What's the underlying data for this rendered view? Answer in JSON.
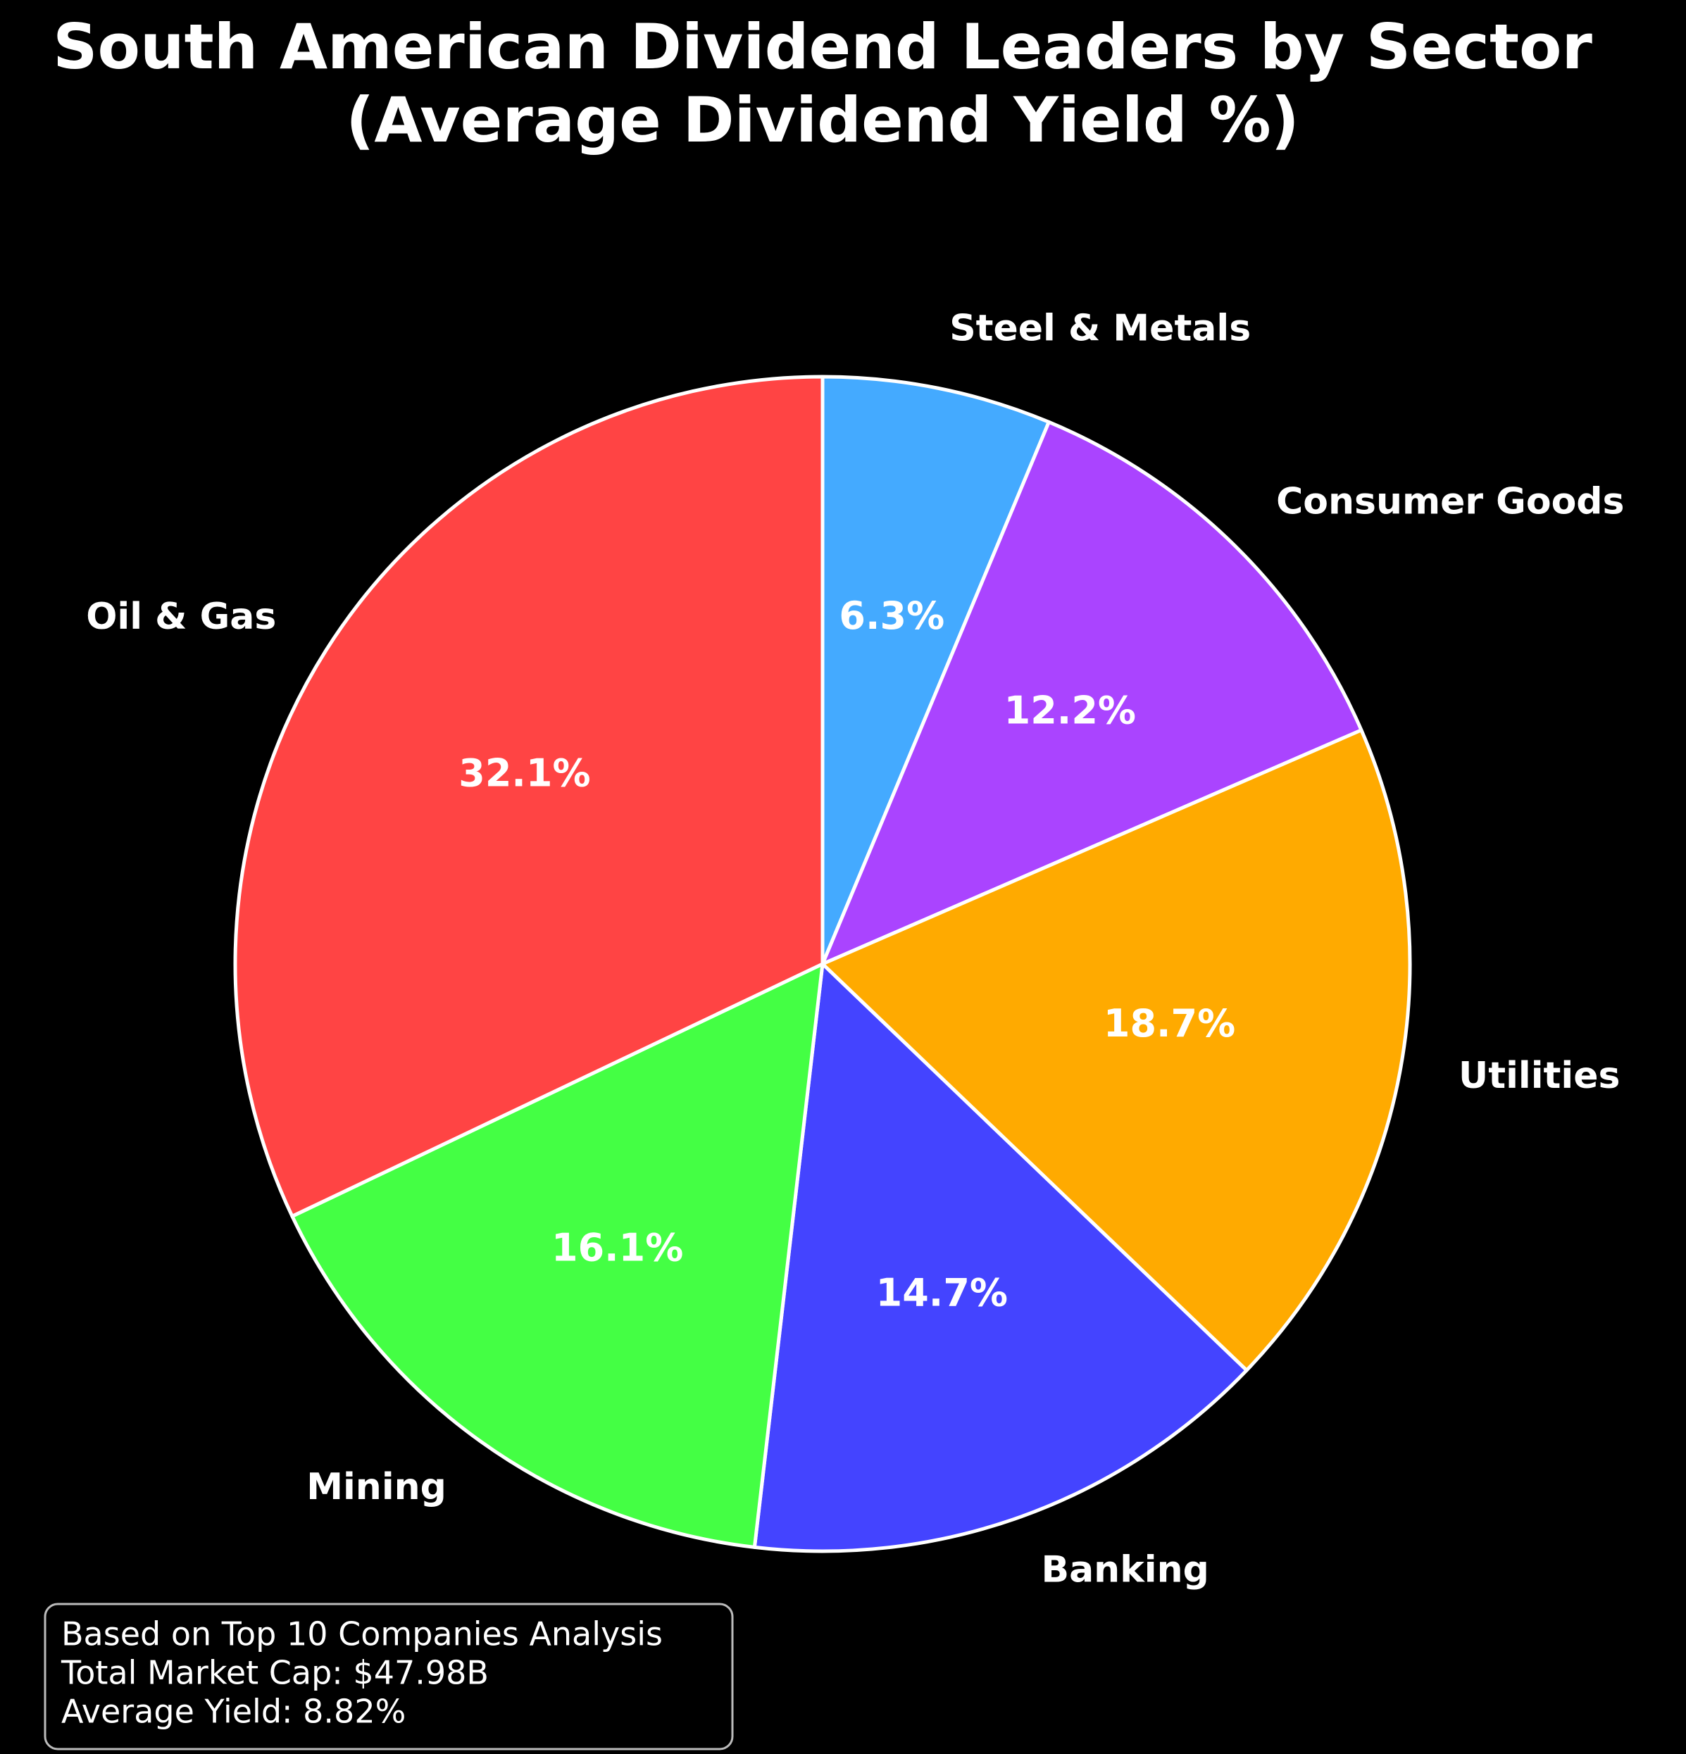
{
  "chart_data": {
    "type": "pie",
    "title": [
      "South American Dividend Leaders by Sector",
      "(Average Dividend Yield %)"
    ],
    "categories": [
      "Steel & Metals",
      "Consumer Goods",
      "Utilities",
      "Banking",
      "Mining",
      "Oil & Gas"
    ],
    "values": [
      6.3,
      12.2,
      18.7,
      14.7,
      16.1,
      32.1
    ],
    "value_labels": [
      "6.3%",
      "12.2%",
      "18.7%",
      "14.7%",
      "16.1%",
      "32.1%"
    ],
    "colors": [
      "#44AAFF",
      "#AA44FF",
      "#FFAA00",
      "#4444FF",
      "#44FF44",
      "#FF4444"
    ],
    "annotation": [
      "Based on Top 10 Companies Analysis",
      "Total Market Cap: $47.98B",
      "Average Yield: 8.82%"
    ]
  }
}
